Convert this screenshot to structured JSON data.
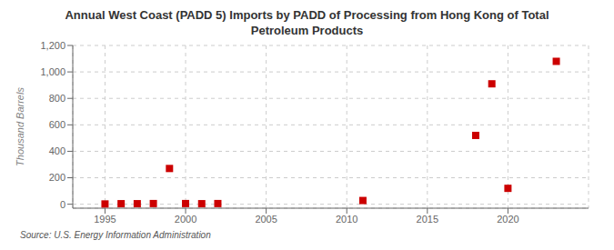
{
  "chart_data": {
    "type": "scatter",
    "title": "Annual West Coast (PADD 5) Imports by PADD of Processing from Hong Kong of Total\nPetroleum Products",
    "ylabel": "Thousand Barrels",
    "annotations": [
      "Source: U.S. Energy Information Administration"
    ],
    "x": [
      1995,
      1996,
      1997,
      1998,
      1999,
      2000,
      2001,
      2002,
      2011,
      2018,
      2019,
      2020,
      2023
    ],
    "values": [
      2,
      4,
      4,
      5,
      270,
      5,
      4,
      5,
      28,
      520,
      910,
      120,
      1080
    ],
    "color": "#cc0000",
    "marker": "square",
    "xlim": [
      1993,
      2025
    ],
    "ylim": [
      -30,
      1200
    ],
    "xticks": [
      1995,
      2000,
      2005,
      2010,
      2015,
      2020
    ],
    "yticks": [
      0,
      200,
      400,
      600,
      800,
      {
        "value": 1000,
        "label": "1,000"
      },
      {
        "value": 1200,
        "label": "1,200"
      }
    ],
    "grid": true
  }
}
